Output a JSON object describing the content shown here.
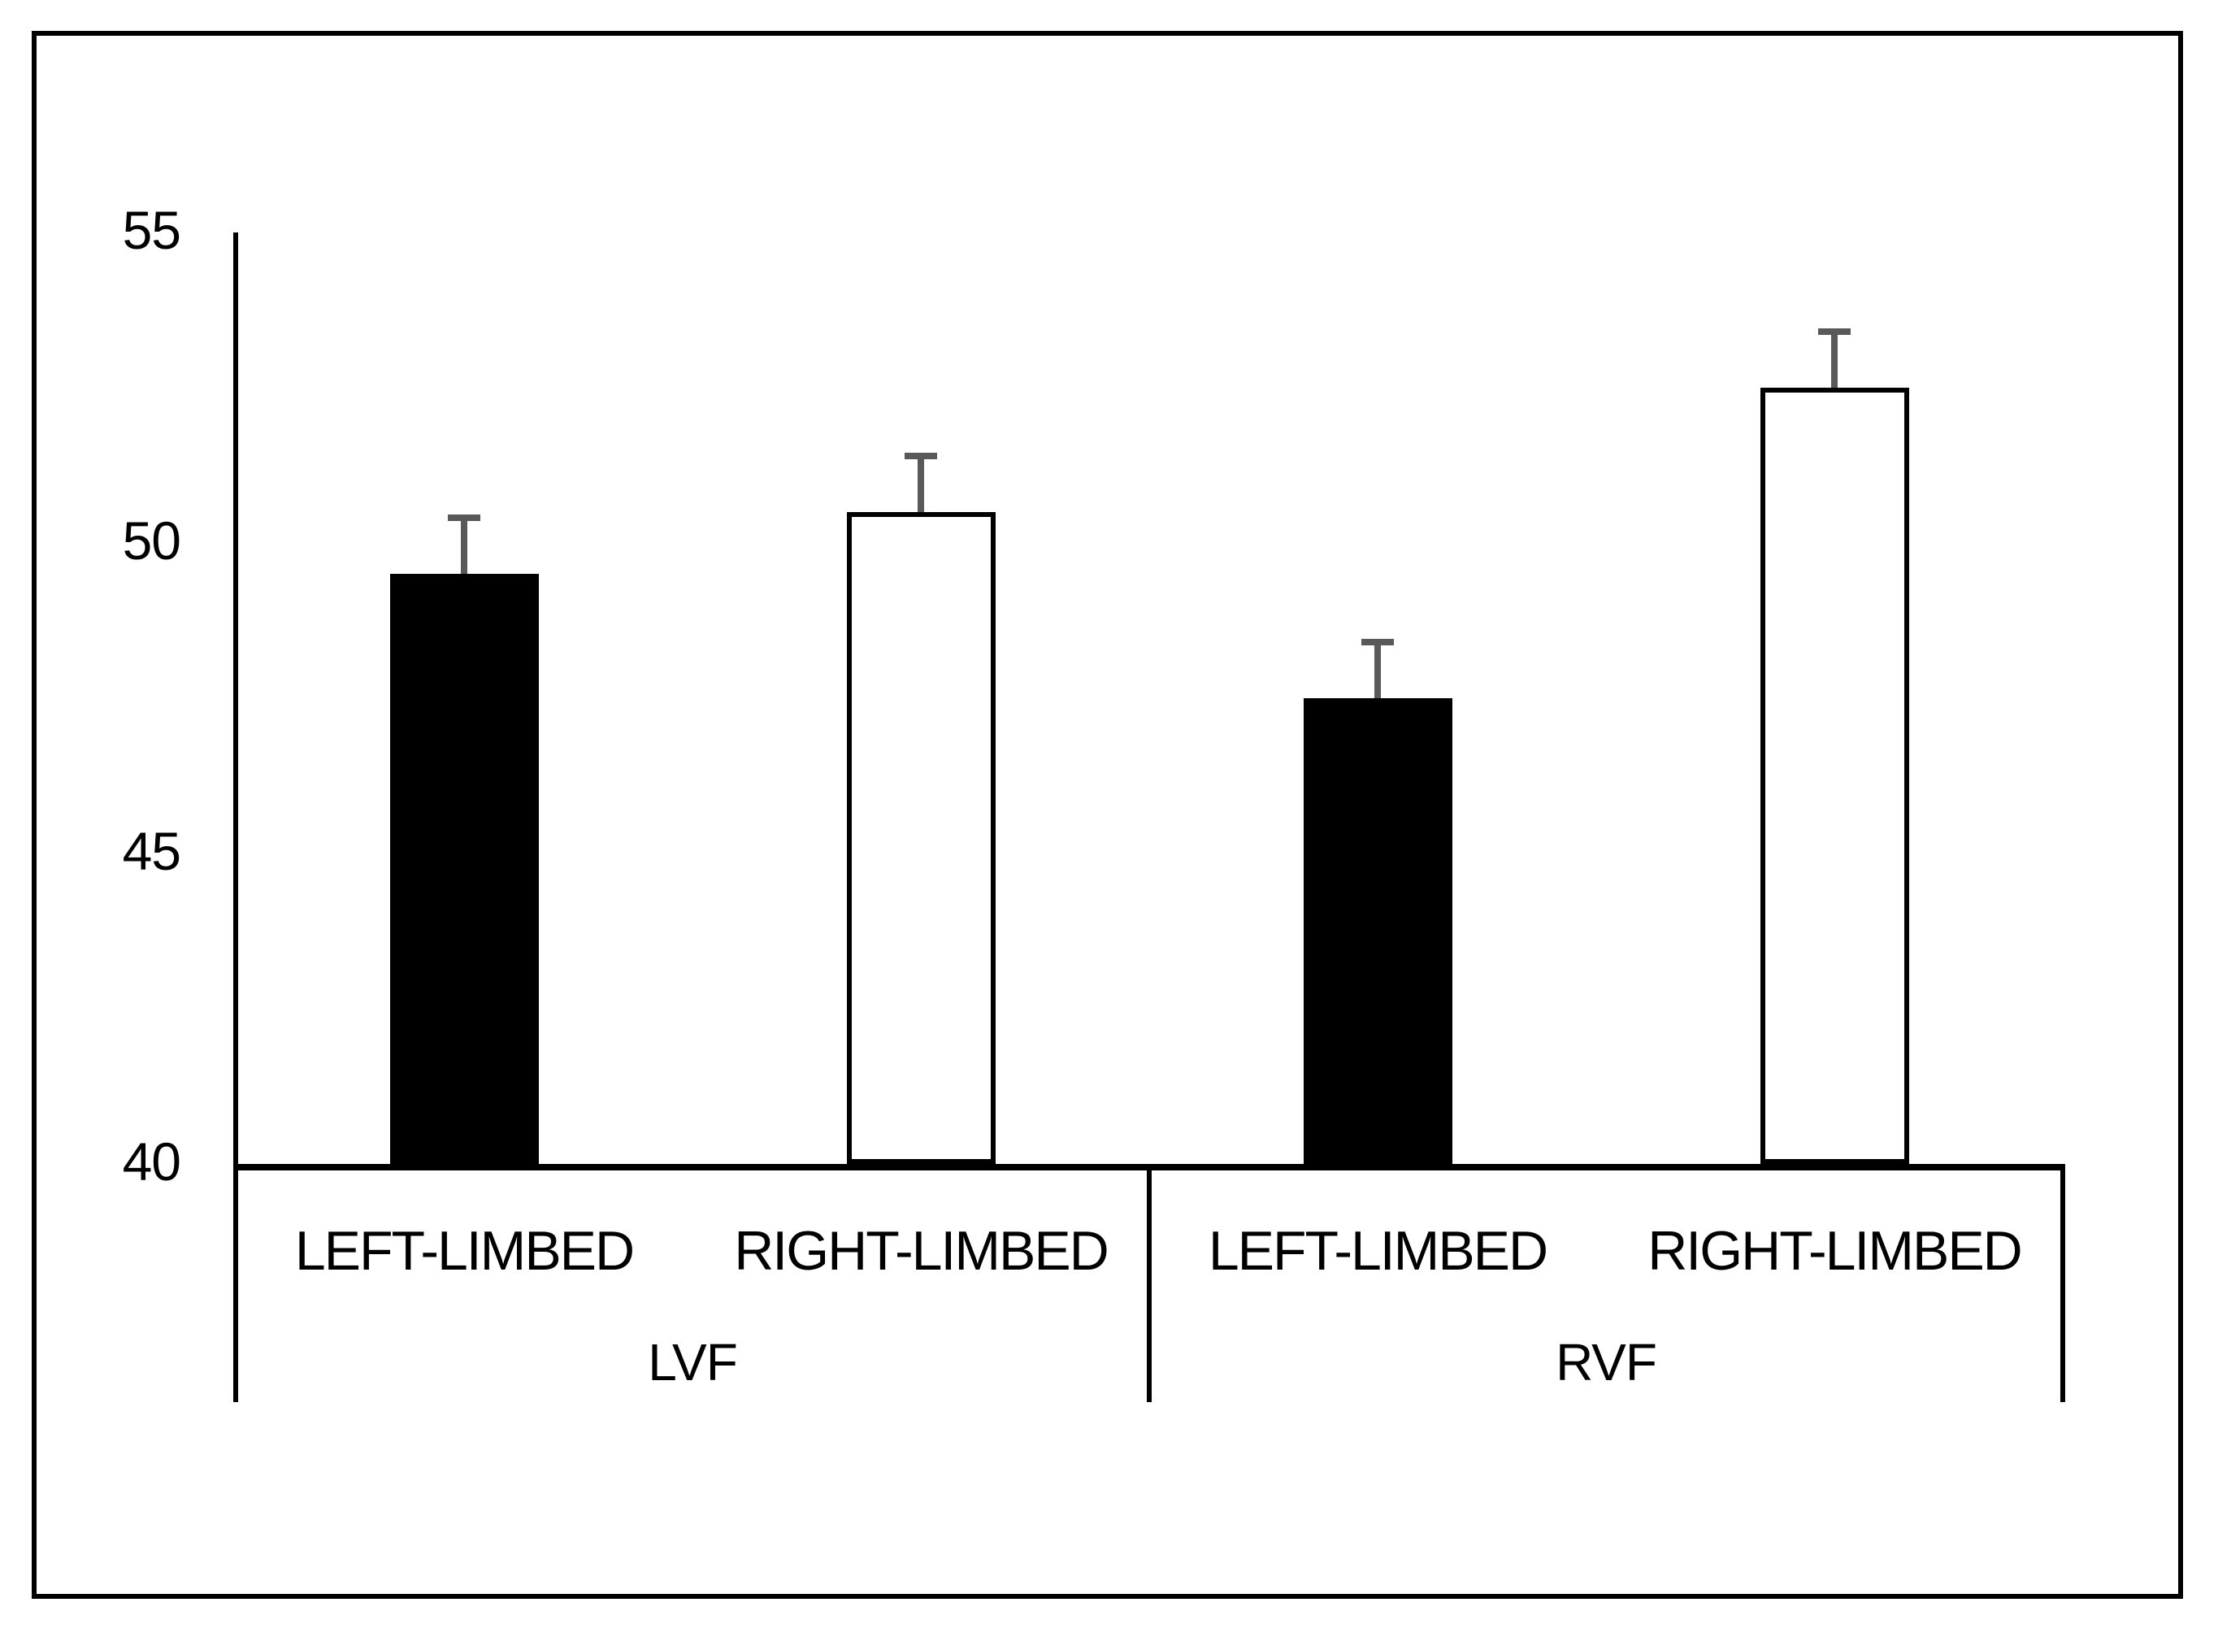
{
  "figure": {
    "background": "#ffffff",
    "border_color": "#000000"
  },
  "chart_data": {
    "type": "bar",
    "title": "",
    "groups": [
      "LVF",
      "RVF"
    ],
    "series": [
      {
        "name": "LEFT-LIMBED",
        "fill": "#000000",
        "border": "#000000",
        "values": [
          49.5,
          47.5
        ],
        "errors_plus": [
          0.9,
          0.9
        ]
      },
      {
        "name": "RIGHT-LIMBED",
        "fill": "#ffffff",
        "border": "#000000",
        "values": [
          50.5,
          52.5
        ],
        "errors_plus": [
          0.9,
          0.9
        ]
      }
    ],
    "ylim": [
      40,
      55
    ],
    "yticks": [
      55,
      50,
      45,
      40
    ],
    "ytick_labels": [
      "55",
      "50",
      "45",
      "40"
    ],
    "error_bar_color": "#595959",
    "axis_color": "#000000",
    "grid": false,
    "legend": "none"
  }
}
